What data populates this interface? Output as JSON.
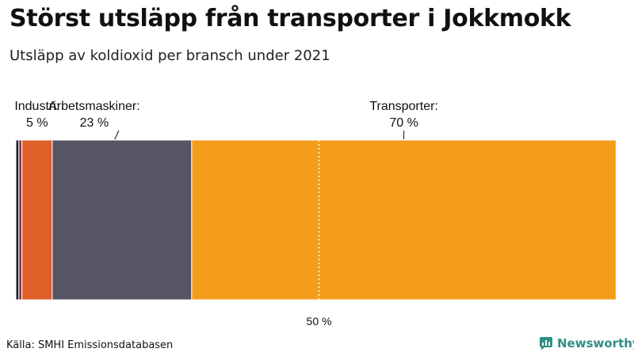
{
  "header": {
    "title": "Störst utsläpp från transporter i Jokkmokk",
    "subtitle": "Utsläpp av koldioxid per bransch under 2021"
  },
  "chart_data": {
    "type": "bar",
    "orientation": "horizontal-stacked-100",
    "segments": [
      {
        "value": 0.5,
        "color": "#1f1f2e",
        "label": "",
        "value_label": ""
      },
      {
        "value": 0.5,
        "color": "#7a3b4e",
        "label": "",
        "value_label": ""
      },
      {
        "value": 5,
        "color": "#e0602a",
        "label": "Industri:",
        "value_label": "5 %"
      },
      {
        "value": 23,
        "color": "#575564",
        "label": "Arbetsmaskiner:",
        "value_label": "23 %"
      },
      {
        "value": 70,
        "color": "#f49c1c",
        "label": "Transporter:",
        "value_label": "70 %"
      }
    ],
    "reference_line": {
      "value": 50,
      "label": "50 %"
    },
    "xlim": [
      0,
      100
    ]
  },
  "footer": {
    "source": "Källa: SMHI Emissionsdatabasen",
    "brand": "Newsworthy",
    "brand_color": "#2f8f86"
  }
}
